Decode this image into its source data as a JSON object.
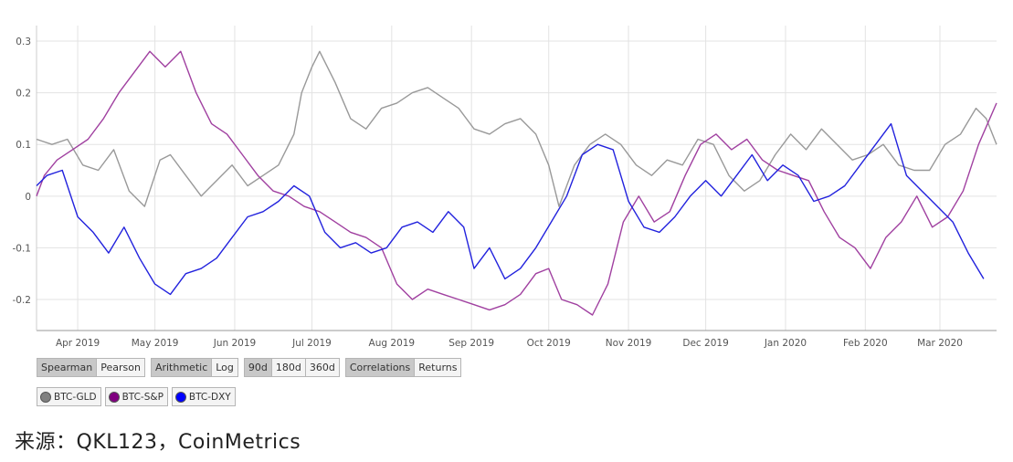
{
  "chart_data": {
    "type": "line",
    "title": "",
    "xlabel": "",
    "ylabel": "",
    "ylim": [
      -0.26,
      0.33
    ],
    "y_ticks": [
      "0.3",
      "0.2",
      "0.1",
      "0",
      "-0.1",
      "-0.2"
    ],
    "y_tick_values": [
      0.3,
      0.2,
      0.1,
      0,
      -0.1,
      -0.2
    ],
    "x_range": [
      "2019-03-16",
      "2020-03-23"
    ],
    "x_ticks": [
      {
        "label": "Apr 2019",
        "date": "2019-04-01"
      },
      {
        "label": "May 2019",
        "date": "2019-05-01"
      },
      {
        "label": "Jun 2019",
        "date": "2019-06-01"
      },
      {
        "label": "Jul 2019",
        "date": "2019-07-01"
      },
      {
        "label": "Aug 2019",
        "date": "2019-08-01"
      },
      {
        "label": "Sep 2019",
        "date": "2019-09-01"
      },
      {
        "label": "Oct 2019",
        "date": "2019-10-01"
      },
      {
        "label": "Nov 2019",
        "date": "2019-11-01"
      },
      {
        "label": "Dec 2019",
        "date": "2019-12-01"
      },
      {
        "label": "Jan 2020",
        "date": "2020-01-01"
      },
      {
        "label": "Feb 2020",
        "date": "2020-02-01"
      },
      {
        "label": "Mar 2020",
        "date": "2020-03-01"
      }
    ],
    "grid": true,
    "series": [
      {
        "name": "BTC-GLD",
        "color": "#999999",
        "points": [
          [
            "2019-03-16",
            0.11
          ],
          [
            "2019-03-22",
            0.1
          ],
          [
            "2019-03-28",
            0.11
          ],
          [
            "2019-04-03",
            0.06
          ],
          [
            "2019-04-09",
            0.05
          ],
          [
            "2019-04-15",
            0.09
          ],
          [
            "2019-04-21",
            0.01
          ],
          [
            "2019-04-27",
            -0.02
          ],
          [
            "2019-05-03",
            0.07
          ],
          [
            "2019-05-07",
            0.08
          ],
          [
            "2019-05-13",
            0.04
          ],
          [
            "2019-05-19",
            0.0
          ],
          [
            "2019-05-25",
            0.03
          ],
          [
            "2019-05-31",
            0.06
          ],
          [
            "2019-06-06",
            0.02
          ],
          [
            "2019-06-12",
            0.04
          ],
          [
            "2019-06-18",
            0.06
          ],
          [
            "2019-06-24",
            0.12
          ],
          [
            "2019-06-27",
            0.2
          ],
          [
            "2019-07-01",
            0.25
          ],
          [
            "2019-07-04",
            0.28
          ],
          [
            "2019-07-10",
            0.22
          ],
          [
            "2019-07-16",
            0.15
          ],
          [
            "2019-07-22",
            0.13
          ],
          [
            "2019-07-28",
            0.17
          ],
          [
            "2019-08-03",
            0.18
          ],
          [
            "2019-08-09",
            0.2
          ],
          [
            "2019-08-15",
            0.21
          ],
          [
            "2019-08-21",
            0.19
          ],
          [
            "2019-08-27",
            0.17
          ],
          [
            "2019-09-02",
            0.13
          ],
          [
            "2019-09-08",
            0.12
          ],
          [
            "2019-09-14",
            0.14
          ],
          [
            "2019-09-20",
            0.15
          ],
          [
            "2019-09-26",
            0.12
          ],
          [
            "2019-10-01",
            0.06
          ],
          [
            "2019-10-05",
            -0.02
          ],
          [
            "2019-10-11",
            0.06
          ],
          [
            "2019-10-17",
            0.1
          ],
          [
            "2019-10-23",
            0.12
          ],
          [
            "2019-10-29",
            0.1
          ],
          [
            "2019-11-04",
            0.06
          ],
          [
            "2019-11-10",
            0.04
          ],
          [
            "2019-11-16",
            0.07
          ],
          [
            "2019-11-22",
            0.06
          ],
          [
            "2019-11-28",
            0.11
          ],
          [
            "2019-12-04",
            0.1
          ],
          [
            "2019-12-10",
            0.04
          ],
          [
            "2019-12-16",
            0.01
          ],
          [
            "2019-12-22",
            0.03
          ],
          [
            "2019-12-28",
            0.08
          ],
          [
            "2020-01-03",
            0.12
          ],
          [
            "2020-01-09",
            0.09
          ],
          [
            "2020-01-15",
            0.13
          ],
          [
            "2020-01-21",
            0.1
          ],
          [
            "2020-01-27",
            0.07
          ],
          [
            "2020-02-02",
            0.08
          ],
          [
            "2020-02-08",
            0.1
          ],
          [
            "2020-02-14",
            0.06
          ],
          [
            "2020-02-20",
            0.05
          ],
          [
            "2020-02-26",
            0.05
          ],
          [
            "2020-03-03",
            0.1
          ],
          [
            "2020-03-09",
            0.12
          ],
          [
            "2020-03-15",
            0.17
          ],
          [
            "2020-03-19",
            0.15
          ],
          [
            "2020-03-23",
            0.1
          ]
        ]
      },
      {
        "name": "BTC-S&P",
        "color": "#a040a0",
        "points": [
          [
            "2019-03-16",
            0.0
          ],
          [
            "2019-03-19",
            0.04
          ],
          [
            "2019-03-24",
            0.07
          ],
          [
            "2019-03-30",
            0.09
          ],
          [
            "2019-04-05",
            0.11
          ],
          [
            "2019-04-11",
            0.15
          ],
          [
            "2019-04-17",
            0.2
          ],
          [
            "2019-04-23",
            0.24
          ],
          [
            "2019-04-29",
            0.28
          ],
          [
            "2019-05-05",
            0.25
          ],
          [
            "2019-05-11",
            0.28
          ],
          [
            "2019-05-17",
            0.2
          ],
          [
            "2019-05-23",
            0.14
          ],
          [
            "2019-05-29",
            0.12
          ],
          [
            "2019-06-04",
            0.08
          ],
          [
            "2019-06-10",
            0.04
          ],
          [
            "2019-06-16",
            0.01
          ],
          [
            "2019-06-22",
            0.0
          ],
          [
            "2019-06-28",
            -0.02
          ],
          [
            "2019-07-04",
            -0.03
          ],
          [
            "2019-07-10",
            -0.05
          ],
          [
            "2019-07-16",
            -0.07
          ],
          [
            "2019-07-22",
            -0.08
          ],
          [
            "2019-07-28",
            -0.1
          ],
          [
            "2019-08-03",
            -0.17
          ],
          [
            "2019-08-09",
            -0.2
          ],
          [
            "2019-08-15",
            -0.18
          ],
          [
            "2019-08-21",
            -0.19
          ],
          [
            "2019-08-27",
            -0.2
          ],
          [
            "2019-09-02",
            -0.21
          ],
          [
            "2019-09-08",
            -0.22
          ],
          [
            "2019-09-14",
            -0.21
          ],
          [
            "2019-09-20",
            -0.19
          ],
          [
            "2019-09-26",
            -0.15
          ],
          [
            "2019-10-01",
            -0.14
          ],
          [
            "2019-10-06",
            -0.2
          ],
          [
            "2019-10-12",
            -0.21
          ],
          [
            "2019-10-18",
            -0.23
          ],
          [
            "2019-10-24",
            -0.17
          ],
          [
            "2019-10-30",
            -0.05
          ],
          [
            "2019-11-05",
            0.0
          ],
          [
            "2019-11-11",
            -0.05
          ],
          [
            "2019-11-17",
            -0.03
          ],
          [
            "2019-11-23",
            0.04
          ],
          [
            "2019-11-29",
            0.1
          ],
          [
            "2019-12-05",
            0.12
          ],
          [
            "2019-12-11",
            0.09
          ],
          [
            "2019-12-17",
            0.11
          ],
          [
            "2019-12-23",
            0.07
          ],
          [
            "2019-12-29",
            0.05
          ],
          [
            "2020-01-04",
            0.04
          ],
          [
            "2020-01-10",
            0.03
          ],
          [
            "2020-01-16",
            -0.03
          ],
          [
            "2020-01-22",
            -0.08
          ],
          [
            "2020-01-28",
            -0.1
          ],
          [
            "2020-02-03",
            -0.14
          ],
          [
            "2020-02-09",
            -0.08
          ],
          [
            "2020-02-15",
            -0.05
          ],
          [
            "2020-02-21",
            0.0
          ],
          [
            "2020-02-27",
            -0.06
          ],
          [
            "2020-03-04",
            -0.04
          ],
          [
            "2020-03-10",
            0.01
          ],
          [
            "2020-03-16",
            0.1
          ],
          [
            "2020-03-23",
            0.18
          ]
        ]
      },
      {
        "name": "BTC-DXY",
        "color": "#2222dd",
        "points": [
          [
            "2019-03-16",
            0.02
          ],
          [
            "2019-03-20",
            0.04
          ],
          [
            "2019-03-26",
            0.05
          ],
          [
            "2019-04-01",
            -0.04
          ],
          [
            "2019-04-07",
            -0.07
          ],
          [
            "2019-04-13",
            -0.11
          ],
          [
            "2019-04-19",
            -0.06
          ],
          [
            "2019-04-25",
            -0.12
          ],
          [
            "2019-05-01",
            -0.17
          ],
          [
            "2019-05-07",
            -0.19
          ],
          [
            "2019-05-13",
            -0.15
          ],
          [
            "2019-05-19",
            -0.14
          ],
          [
            "2019-05-25",
            -0.12
          ],
          [
            "2019-05-31",
            -0.08
          ],
          [
            "2019-06-06",
            -0.04
          ],
          [
            "2019-06-12",
            -0.03
          ],
          [
            "2019-06-18",
            -0.01
          ],
          [
            "2019-06-24",
            0.02
          ],
          [
            "2019-06-30",
            0.0
          ],
          [
            "2019-07-06",
            -0.07
          ],
          [
            "2019-07-12",
            -0.1
          ],
          [
            "2019-07-18",
            -0.09
          ],
          [
            "2019-07-24",
            -0.11
          ],
          [
            "2019-07-30",
            -0.1
          ],
          [
            "2019-08-05",
            -0.06
          ],
          [
            "2019-08-11",
            -0.05
          ],
          [
            "2019-08-17",
            -0.07
          ],
          [
            "2019-08-23",
            -0.03
          ],
          [
            "2019-08-29",
            -0.06
          ],
          [
            "2019-09-02",
            -0.14
          ],
          [
            "2019-09-08",
            -0.1
          ],
          [
            "2019-09-14",
            -0.16
          ],
          [
            "2019-09-20",
            -0.14
          ],
          [
            "2019-09-26",
            -0.1
          ],
          [
            "2019-10-02",
            -0.05
          ],
          [
            "2019-10-08",
            0.0
          ],
          [
            "2019-10-14",
            0.08
          ],
          [
            "2019-10-20",
            0.1
          ],
          [
            "2019-10-26",
            0.09
          ],
          [
            "2019-11-01",
            -0.01
          ],
          [
            "2019-11-07",
            -0.06
          ],
          [
            "2019-11-13",
            -0.07
          ],
          [
            "2019-11-19",
            -0.04
          ],
          [
            "2019-11-25",
            0.0
          ],
          [
            "2019-12-01",
            0.03
          ],
          [
            "2019-12-07",
            0.0
          ],
          [
            "2019-12-13",
            0.04
          ],
          [
            "2019-12-19",
            0.08
          ],
          [
            "2019-12-25",
            0.03
          ],
          [
            "2019-12-31",
            0.06
          ],
          [
            "2020-01-06",
            0.04
          ],
          [
            "2020-01-12",
            -0.01
          ],
          [
            "2020-01-18",
            0.0
          ],
          [
            "2020-01-24",
            0.02
          ],
          [
            "2020-01-30",
            0.06
          ],
          [
            "2020-02-05",
            0.1
          ],
          [
            "2020-02-11",
            0.14
          ],
          [
            "2020-02-17",
            0.04
          ],
          [
            "2020-02-23",
            0.01
          ],
          [
            "2020-02-29",
            -0.02
          ],
          [
            "2020-03-06",
            -0.05
          ],
          [
            "2020-03-12",
            -0.11
          ],
          [
            "2020-03-18",
            -0.16
          ]
        ]
      }
    ]
  },
  "controls": {
    "method": [
      "Spearman",
      "Pearson"
    ],
    "scale": [
      "Arithmetic",
      "Log"
    ],
    "window": [
      "90d",
      "180d",
      "360d"
    ],
    "view": [
      "Correlations",
      "Returns"
    ]
  },
  "legend": [
    {
      "label": "BTC-GLD",
      "color": "#808080"
    },
    {
      "label": "BTC-S&P",
      "color": "#800080"
    },
    {
      "label": "BTC-DXY",
      "color": "#0000ff"
    }
  ],
  "source": "来源：QKL123，CoinMetrics"
}
